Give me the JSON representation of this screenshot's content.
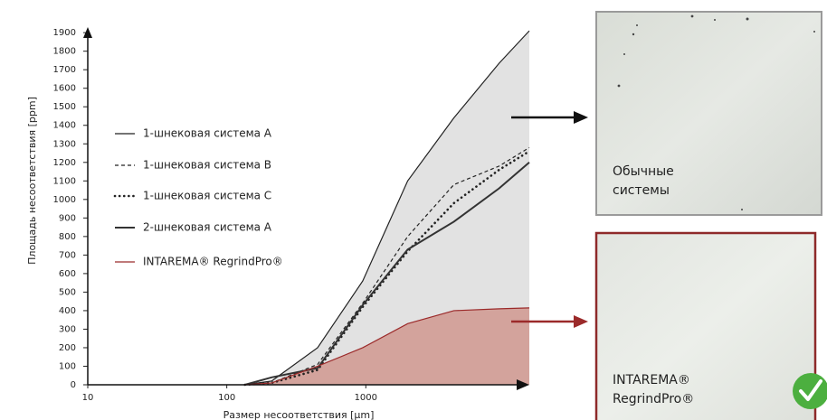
{
  "chart_data": {
    "type": "line",
    "x_label": "Размер несоответствия  [µm]",
    "y_label": "Площадь несоответствия  [ppm]",
    "x": [
      135,
      210,
      450,
      950,
      2000,
      4300,
      9100,
      15000
    ],
    "series": [
      {
        "name": "1-шнековая система A",
        "color": "#222222",
        "dash": "solid",
        "width": 1.2,
        "fill": "#e2e2e2",
        "values": [
          0,
          20,
          200,
          560,
          1100,
          1440,
          1735,
          1910
        ]
      },
      {
        "name": "1-шнековая система B",
        "color": "#222222",
        "dash": "dashed",
        "width": 1.2,
        "values": [
          0,
          10,
          110,
          440,
          800,
          1080,
          1180,
          1280
        ]
      },
      {
        "name": "1-шнековая система C",
        "color": "#222222",
        "dash": "dotted",
        "width": 2.6,
        "values": [
          0,
          10,
          80,
          420,
          720,
          980,
          1160,
          1260
        ]
      },
      {
        "name": "2-шнековая система A",
        "color": "#333333",
        "dash": "solid",
        "width": 2,
        "values": [
          0,
          40,
          90,
          430,
          730,
          880,
          1060,
          1200
        ]
      },
      {
        "name": "INTAREMA® RegrindPro®",
        "color": "#9b2a2a",
        "dash": "solid",
        "width": 1.2,
        "fill": "#d3a39c",
        "values": [
          0,
          10,
          100,
          200,
          330,
          400,
          410,
          415
        ]
      }
    ],
    "xlim": [
      10,
      15000
    ],
    "xscale": "log",
    "xticks": [
      10,
      100,
      1000
    ],
    "ylim": [
      0,
      1930
    ],
    "yticks": [
      0,
      100,
      200,
      300,
      400,
      500,
      600,
      700,
      800,
      900,
      1000,
      1100,
      1200,
      1300,
      1400,
      1500,
      1600,
      1700,
      1800,
      1900
    ]
  },
  "panels": [
    {
      "lines": [
        "Обычные",
        "системы"
      ]
    },
    {
      "lines": [
        "INTAREMA®",
        "RegrindPro®"
      ]
    }
  ]
}
